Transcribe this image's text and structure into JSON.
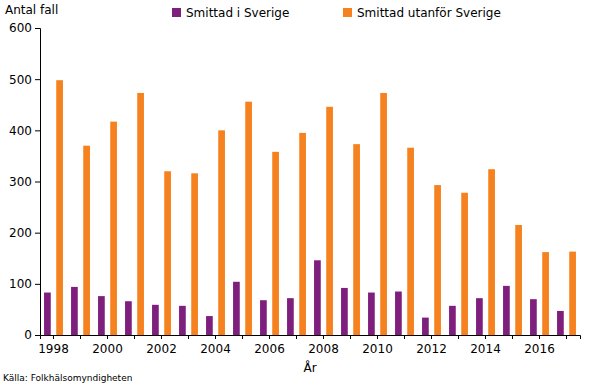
{
  "chart_data": {
    "type": "bar",
    "y_label": "Antal fall",
    "x_label": "År",
    "source": "Källa: Folkhälsomyndigheten",
    "categories": [
      "1998",
      null,
      "2000",
      null,
      "2002",
      null,
      "2004",
      null,
      "2006",
      null,
      "2008",
      null,
      "2010",
      null,
      "2012",
      null,
      "2014",
      null,
      "2016",
      null
    ],
    "series": [
      {
        "name": "Smittad i Sverige",
        "color": "#7f1f7d",
        "values": [
          83,
          94,
          76,
          66,
          59,
          57,
          37,
          104,
          68,
          72,
          146,
          92,
          83,
          85,
          34,
          57,
          72,
          96,
          70,
          47
        ]
      },
      {
        "name": "Smittad utanför Sverige",
        "color": "#f5821f",
        "values": [
          498,
          370,
          417,
          473,
          320,
          316,
          400,
          456,
          358,
          395,
          446,
          373,
          473,
          366,
          293,
          278,
          324,
          215,
          162,
          163
        ]
      }
    ],
    "ylim": [
      0,
      600
    ],
    "yticks": [
      0,
      100,
      200,
      300,
      400,
      500,
      600
    ],
    "grid": false,
    "legend": "top"
  }
}
